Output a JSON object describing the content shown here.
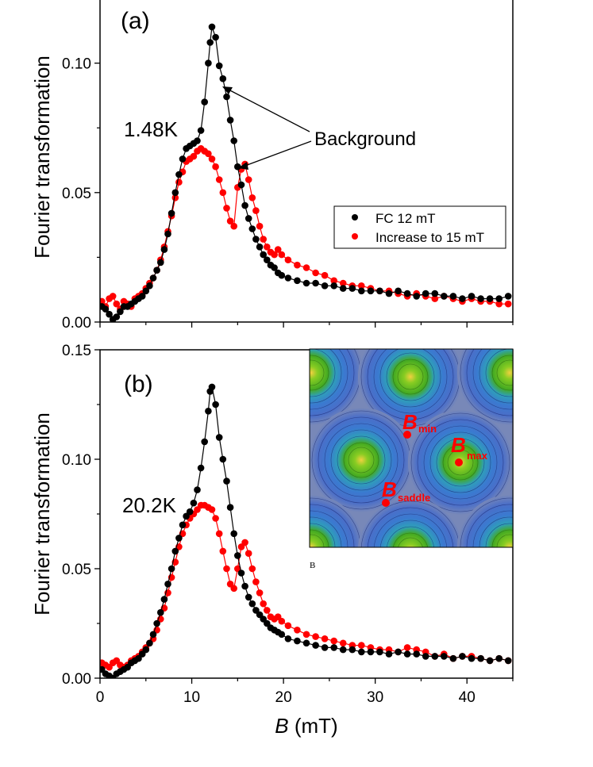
{
  "figure": {
    "xlabel_symbol": "B",
    "xlabel_unit": " (mT)"
  },
  "chart_data": [
    {
      "panel": "(a)",
      "type": "scatter",
      "temperature_label": "1.48K",
      "ylabel": "Fourier transformation",
      "xlim": [
        0,
        45
      ],
      "ylim": [
        0,
        0.125
      ],
      "yticks": [
        0.0,
        0.05,
        0.1
      ],
      "ytick_labels": [
        "0.00",
        "0.05",
        "0.10"
      ],
      "xticks": [
        0,
        10,
        20,
        30,
        40
      ],
      "annotation": "Background",
      "legend": {
        "placement": "right",
        "entries": [
          "FC 12 mT",
          "Increase to 15 mT"
        ]
      },
      "series": [
        {
          "name": "FC 12 mT",
          "color": "#000000",
          "x": [
            0.2,
            0.6,
            1.0,
            1.4,
            1.8,
            2.2,
            2.6,
            3.0,
            3.4,
            3.8,
            4.2,
            4.6,
            5.0,
            5.4,
            5.8,
            6.2,
            6.6,
            7.0,
            7.4,
            7.8,
            8.2,
            8.6,
            9.0,
            9.4,
            9.8,
            10.2,
            10.6,
            11.0,
            11.4,
            11.8,
            12.0,
            12.2,
            12.6,
            13.0,
            13.4,
            13.8,
            14.2,
            14.6,
            15.0,
            15.4,
            15.8,
            16.2,
            16.6,
            17.0,
            17.4,
            17.8,
            18.2,
            18.6,
            19.0,
            19.4,
            19.8,
            20.5,
            21.5,
            22.5,
            23.5,
            24.5,
            25.5,
            26.5,
            27.5,
            28.5,
            29.5,
            30.5,
            31.5,
            32.5,
            33.5,
            34.5,
            35.5,
            36.5,
            37.5,
            38.5,
            39.5,
            40.5,
            41.5,
            42.5,
            43.5,
            44.5
          ],
          "y": [
            0.006,
            0.005,
            0.003,
            0.001,
            0.002,
            0.004,
            0.006,
            0.006,
            0.007,
            0.008,
            0.009,
            0.01,
            0.012,
            0.014,
            0.017,
            0.02,
            0.023,
            0.028,
            0.034,
            0.042,
            0.05,
            0.057,
            0.063,
            0.067,
            0.068,
            0.069,
            0.07,
            0.074,
            0.085,
            0.1,
            0.108,
            0.114,
            0.11,
            0.099,
            0.094,
            0.087,
            0.078,
            0.07,
            0.06,
            0.053,
            0.045,
            0.04,
            0.036,
            0.032,
            0.029,
            0.026,
            0.024,
            0.022,
            0.021,
            0.019,
            0.018,
            0.017,
            0.016,
            0.015,
            0.015,
            0.014,
            0.014,
            0.013,
            0.013,
            0.012,
            0.012,
            0.012,
            0.011,
            0.012,
            0.011,
            0.01,
            0.011,
            0.011,
            0.01,
            0.01,
            0.009,
            0.01,
            0.009,
            0.009,
            0.009,
            0.01
          ]
        },
        {
          "name": "Increase to 15 mT",
          "color": "#ff0000",
          "x": [
            0.2,
            0.6,
            1.0,
            1.4,
            1.8,
            2.2,
            2.6,
            3.0,
            3.4,
            3.8,
            4.2,
            4.6,
            5.0,
            5.4,
            5.8,
            6.2,
            6.6,
            7.0,
            7.4,
            7.8,
            8.2,
            8.6,
            9.0,
            9.4,
            9.8,
            10.2,
            10.6,
            11.0,
            11.4,
            11.8,
            12.2,
            12.6,
            13.0,
            13.4,
            13.8,
            14.2,
            14.6,
            15.0,
            15.4,
            15.8,
            16.2,
            16.6,
            17.0,
            17.4,
            17.8,
            18.2,
            18.6,
            19.0,
            19.4,
            19.8,
            20.5,
            21.5,
            22.5,
            23.5,
            24.5,
            25.5,
            26.5,
            27.5,
            28.5,
            29.5,
            30.5,
            31.5,
            32.5,
            33.5,
            34.5,
            35.5,
            36.5,
            37.5,
            38.5,
            39.5,
            40.5,
            41.5,
            42.5,
            43.5,
            44.5
          ],
          "y": [
            0.008,
            0.006,
            0.009,
            0.01,
            0.007,
            0.005,
            0.008,
            0.007,
            0.006,
            0.009,
            0.01,
            0.011,
            0.013,
            0.015,
            0.017,
            0.02,
            0.024,
            0.029,
            0.035,
            0.041,
            0.048,
            0.054,
            0.058,
            0.062,
            0.063,
            0.064,
            0.066,
            0.067,
            0.066,
            0.065,
            0.063,
            0.06,
            0.055,
            0.05,
            0.044,
            0.039,
            0.037,
            0.052,
            0.059,
            0.061,
            0.055,
            0.048,
            0.043,
            0.037,
            0.032,
            0.029,
            0.027,
            0.026,
            0.028,
            0.026,
            0.024,
            0.022,
            0.021,
            0.019,
            0.018,
            0.016,
            0.015,
            0.014,
            0.014,
            0.013,
            0.012,
            0.012,
            0.011,
            0.01,
            0.011,
            0.01,
            0.009,
            0.01,
            0.009,
            0.008,
            0.009,
            0.008,
            0.008,
            0.007,
            0.007
          ]
        }
      ]
    },
    {
      "panel": "(b)",
      "type": "scatter",
      "temperature_label": "20.2K",
      "ylabel": "Fourier transformation",
      "xlabel": "B (mT)",
      "xlim": [
        0,
        45
      ],
      "ylim": [
        0,
        0.15
      ],
      "yticks": [
        0.0,
        0.05,
        0.1,
        0.15
      ],
      "ytick_labels": [
        "0.00",
        "0.05",
        "0.10",
        "0.15"
      ],
      "xticks": [
        0,
        10,
        20,
        30,
        40
      ],
      "xtick_labels": [
        "0",
        "10",
        "20",
        "30",
        "40"
      ],
      "inset": {
        "labels": [
          {
            "main": "B",
            "sub": "min"
          },
          {
            "main": "B",
            "sub": "max"
          },
          {
            "main": "B",
            "sub": "saddle"
          }
        ],
        "caption": "B",
        "background_color": "#7888b8",
        "core_color": "#44aa22"
      },
      "series": [
        {
          "name": "FC 12 mT",
          "color": "#000000",
          "x": [
            0.2,
            0.6,
            1.0,
            1.4,
            1.8,
            2.2,
            2.6,
            3.0,
            3.4,
            3.8,
            4.2,
            4.6,
            5.0,
            5.4,
            5.8,
            6.2,
            6.6,
            7.0,
            7.4,
            7.8,
            8.2,
            8.6,
            9.0,
            9.4,
            9.8,
            10.2,
            10.6,
            11.0,
            11.4,
            11.8,
            12.0,
            12.2,
            12.6,
            13.0,
            13.4,
            13.8,
            14.2,
            14.6,
            15.0,
            15.4,
            15.8,
            16.2,
            16.6,
            17.0,
            17.4,
            17.8,
            18.2,
            18.6,
            19.0,
            19.4,
            19.8,
            20.5,
            21.5,
            22.5,
            23.5,
            24.5,
            25.5,
            26.5,
            27.5,
            28.5,
            29.5,
            30.5,
            31.5,
            32.5,
            33.5,
            34.5,
            35.5,
            36.5,
            37.5,
            38.5,
            39.5,
            40.5,
            41.5,
            42.5,
            43.5,
            44.5
          ],
          "y": [
            0.004,
            0.002,
            0.001,
            0.0,
            0.002,
            0.003,
            0.004,
            0.005,
            0.007,
            0.008,
            0.009,
            0.011,
            0.013,
            0.016,
            0.02,
            0.025,
            0.03,
            0.036,
            0.043,
            0.05,
            0.058,
            0.064,
            0.07,
            0.074,
            0.076,
            0.08,
            0.086,
            0.096,
            0.108,
            0.122,
            0.131,
            0.133,
            0.125,
            0.11,
            0.1,
            0.09,
            0.078,
            0.066,
            0.056,
            0.048,
            0.042,
            0.037,
            0.034,
            0.031,
            0.029,
            0.027,
            0.025,
            0.023,
            0.022,
            0.021,
            0.02,
            0.018,
            0.017,
            0.016,
            0.015,
            0.014,
            0.014,
            0.013,
            0.013,
            0.012,
            0.012,
            0.012,
            0.011,
            0.012,
            0.011,
            0.011,
            0.01,
            0.01,
            0.01,
            0.009,
            0.01,
            0.009,
            0.009,
            0.008,
            0.009,
            0.008
          ]
        },
        {
          "name": "Increase to 15 mT",
          "color": "#ff0000",
          "x": [
            0.2,
            0.6,
            1.0,
            1.4,
            1.8,
            2.2,
            2.6,
            3.0,
            3.4,
            3.8,
            4.2,
            4.6,
            5.0,
            5.4,
            5.8,
            6.2,
            6.6,
            7.0,
            7.4,
            7.8,
            8.2,
            8.6,
            9.0,
            9.4,
            9.8,
            10.2,
            10.6,
            11.0,
            11.4,
            11.8,
            12.2,
            12.6,
            13.0,
            13.4,
            13.8,
            14.2,
            14.6,
            15.0,
            15.4,
            15.8,
            16.2,
            16.6,
            17.0,
            17.4,
            17.8,
            18.2,
            18.6,
            19.0,
            19.4,
            19.8,
            20.5,
            21.5,
            22.5,
            23.5,
            24.5,
            25.5,
            26.5,
            27.5,
            28.5,
            29.5,
            30.5,
            31.5,
            32.5,
            33.5,
            34.5,
            35.5,
            36.5,
            37.5,
            38.5,
            39.5,
            40.5,
            41.5,
            42.5,
            43.5,
            44.5
          ],
          "y": [
            0.007,
            0.006,
            0.005,
            0.007,
            0.008,
            0.006,
            0.005,
            0.006,
            0.008,
            0.009,
            0.01,
            0.012,
            0.014,
            0.016,
            0.018,
            0.022,
            0.027,
            0.032,
            0.039,
            0.046,
            0.053,
            0.06,
            0.066,
            0.07,
            0.073,
            0.075,
            0.077,
            0.079,
            0.079,
            0.078,
            0.077,
            0.073,
            0.066,
            0.058,
            0.05,
            0.043,
            0.041,
            0.05,
            0.06,
            0.062,
            0.057,
            0.05,
            0.044,
            0.039,
            0.034,
            0.031,
            0.028,
            0.027,
            0.028,
            0.026,
            0.024,
            0.022,
            0.02,
            0.019,
            0.018,
            0.017,
            0.016,
            0.015,
            0.015,
            0.014,
            0.013,
            0.013,
            0.012,
            0.014,
            0.013,
            0.012,
            0.01,
            0.011,
            0.009,
            0.01,
            0.01,
            0.009,
            0.008,
            0.009,
            0.008
          ]
        }
      ]
    }
  ]
}
